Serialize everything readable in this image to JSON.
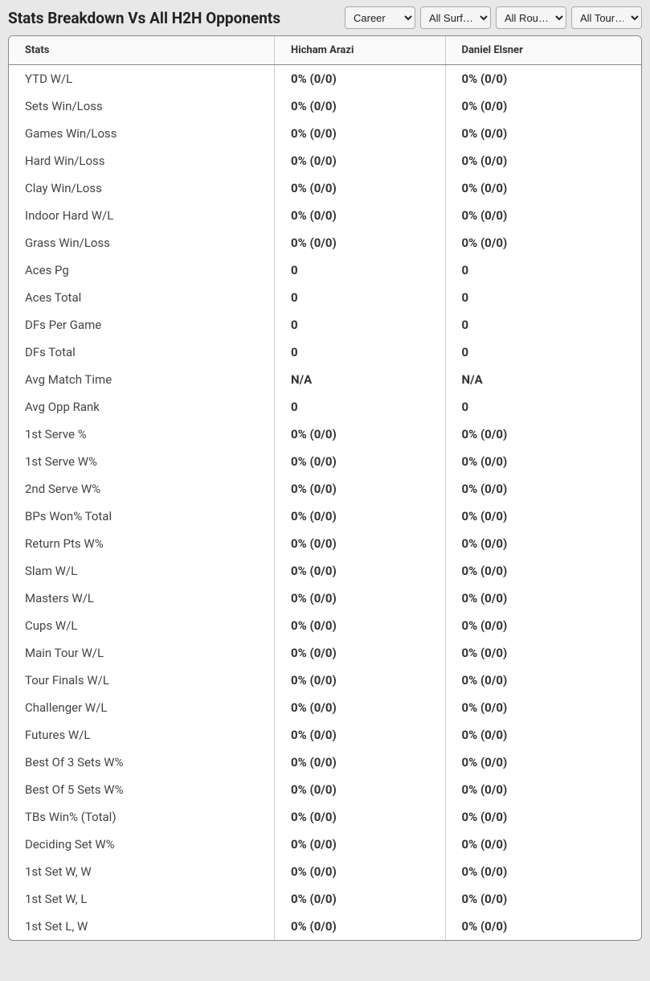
{
  "header": {
    "title": "Stats Breakdown Vs All H2H Opponents"
  },
  "filters": {
    "career": "Career",
    "surface": "All Surf…",
    "round": "All Rou…",
    "tour": "All Tour…"
  },
  "table": {
    "columns": {
      "stats": "Stats",
      "player1": "Hicham Arazi",
      "player2": "Daniel Elsner"
    },
    "rows": [
      {
        "label": "YTD W/L",
        "p1": "0% (0/0)",
        "p2": "0% (0/0)"
      },
      {
        "label": "Sets Win/Loss",
        "p1": "0% (0/0)",
        "p2": "0% (0/0)"
      },
      {
        "label": "Games Win/Loss",
        "p1": "0% (0/0)",
        "p2": "0% (0/0)"
      },
      {
        "label": "Hard Win/Loss",
        "p1": "0% (0/0)",
        "p2": "0% (0/0)"
      },
      {
        "label": "Clay Win/Loss",
        "p1": "0% (0/0)",
        "p2": "0% (0/0)"
      },
      {
        "label": "Indoor Hard W/L",
        "p1": "0% (0/0)",
        "p2": "0% (0/0)"
      },
      {
        "label": "Grass Win/Loss",
        "p1": "0% (0/0)",
        "p2": "0% (0/0)"
      },
      {
        "label": "Aces Pg",
        "p1": "0",
        "p2": "0"
      },
      {
        "label": "Aces Total",
        "p1": "0",
        "p2": "0"
      },
      {
        "label": "DFs Per Game",
        "p1": "0",
        "p2": "0"
      },
      {
        "label": "DFs Total",
        "p1": "0",
        "p2": "0"
      },
      {
        "label": "Avg Match Time",
        "p1": "N/A",
        "p2": "N/A"
      },
      {
        "label": "Avg Opp Rank",
        "p1": "0",
        "p2": "0"
      },
      {
        "label": "1st Serve %",
        "p1": "0% (0/0)",
        "p2": "0% (0/0)"
      },
      {
        "label": "1st Serve W%",
        "p1": "0% (0/0)",
        "p2": "0% (0/0)"
      },
      {
        "label": "2nd Serve W%",
        "p1": "0% (0/0)",
        "p2": "0% (0/0)"
      },
      {
        "label": "BPs Won% Total",
        "p1": "0% (0/0)",
        "p2": "0% (0/0)"
      },
      {
        "label": "Return Pts W%",
        "p1": "0% (0/0)",
        "p2": "0% (0/0)"
      },
      {
        "label": "Slam W/L",
        "p1": "0% (0/0)",
        "p2": "0% (0/0)"
      },
      {
        "label": "Masters W/L",
        "p1": "0% (0/0)",
        "p2": "0% (0/0)"
      },
      {
        "label": "Cups W/L",
        "p1": "0% (0/0)",
        "p2": "0% (0/0)"
      },
      {
        "label": "Main Tour W/L",
        "p1": "0% (0/0)",
        "p2": "0% (0/0)"
      },
      {
        "label": "Tour Finals W/L",
        "p1": "0% (0/0)",
        "p2": "0% (0/0)"
      },
      {
        "label": "Challenger W/L",
        "p1": "0% (0/0)",
        "p2": "0% (0/0)"
      },
      {
        "label": "Futures W/L",
        "p1": "0% (0/0)",
        "p2": "0% (0/0)"
      },
      {
        "label": "Best Of 3 Sets W%",
        "p1": "0% (0/0)",
        "p2": "0% (0/0)"
      },
      {
        "label": "Best Of 5 Sets W%",
        "p1": "0% (0/0)",
        "p2": "0% (0/0)"
      },
      {
        "label": "TBs Win% (Total)",
        "p1": "0% (0/0)",
        "p2": "0% (0/0)"
      },
      {
        "label": "Deciding Set W%",
        "p1": "0% (0/0)",
        "p2": "0% (0/0)"
      },
      {
        "label": "1st Set W, W",
        "p1": "0% (0/0)",
        "p2": "0% (0/0)"
      },
      {
        "label": "1st Set W, L",
        "p1": "0% (0/0)",
        "p2": "0% (0/0)"
      },
      {
        "label": "1st Set L, W",
        "p1": "0% (0/0)",
        "p2": "0% (0/0)"
      }
    ]
  }
}
